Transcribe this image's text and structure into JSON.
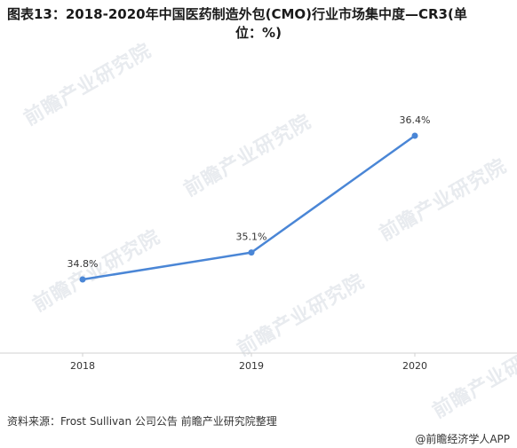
{
  "title_line1": "图表13：2018-2020年中国医药制造外包(CMO)行业市场集中度—CR3(单",
  "title_line2": "位：%)",
  "source": "资料来源：Frost Sullivan 公司公告 前瞻产业研究院整理",
  "brand": "@前瞻经济学人APP",
  "watermark_text": "前瞻产业研究院",
  "colors": {
    "line": "#4a86d6",
    "axis": "#d0d0d0",
    "text": "#333333"
  },
  "chart_data": {
    "type": "line",
    "categories": [
      "2018",
      "2019",
      "2020"
    ],
    "series": [
      {
        "values": [
          34.8,
          35.1,
          36.4
        ],
        "labels": [
          "34.8%",
          "35.1%",
          "36.4%"
        ]
      }
    ],
    "grid": false,
    "legend": "none"
  }
}
